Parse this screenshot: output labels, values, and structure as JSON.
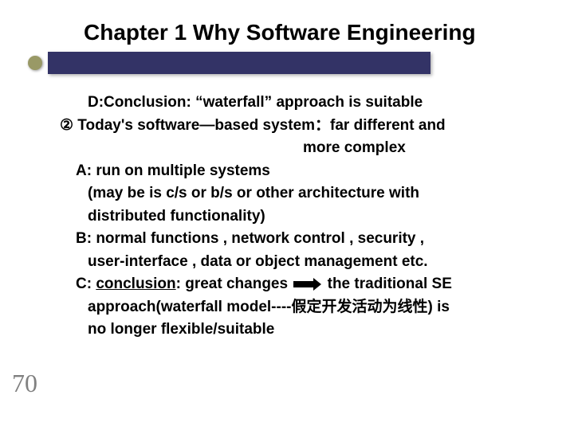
{
  "slide": {
    "title": "Chapter 1  Why Software Engineering",
    "page_number": "70",
    "colors": {
      "title_bar": "#333366",
      "bullet": "#999966",
      "text": "#000000",
      "page_num": "#808080",
      "background": "#ffffff"
    },
    "content": {
      "line_d": "D:Conclusion: “waterfall” approach is suitable",
      "line_circled": "② Today's software—based system：far different and",
      "line_more": "more complex",
      "line_a": "A: run on multiple systems",
      "line_a_sub1": "(may be is c/s or b/s or other architecture with",
      "line_a_sub2": "distributed functionality)",
      "line_b": "B: normal functions , network control , security ,",
      "line_b_sub": "user-interface , data or object management etc.",
      "line_c_1": "C: ",
      "line_c_2": "conclusion",
      "line_c_3": ": great changes ",
      "line_c_4": " the traditional SE",
      "line_c_sub1": "approach(waterfall model----假定开发活动为线性) is",
      "line_c_sub2": "no longer flexible/suitable"
    }
  }
}
